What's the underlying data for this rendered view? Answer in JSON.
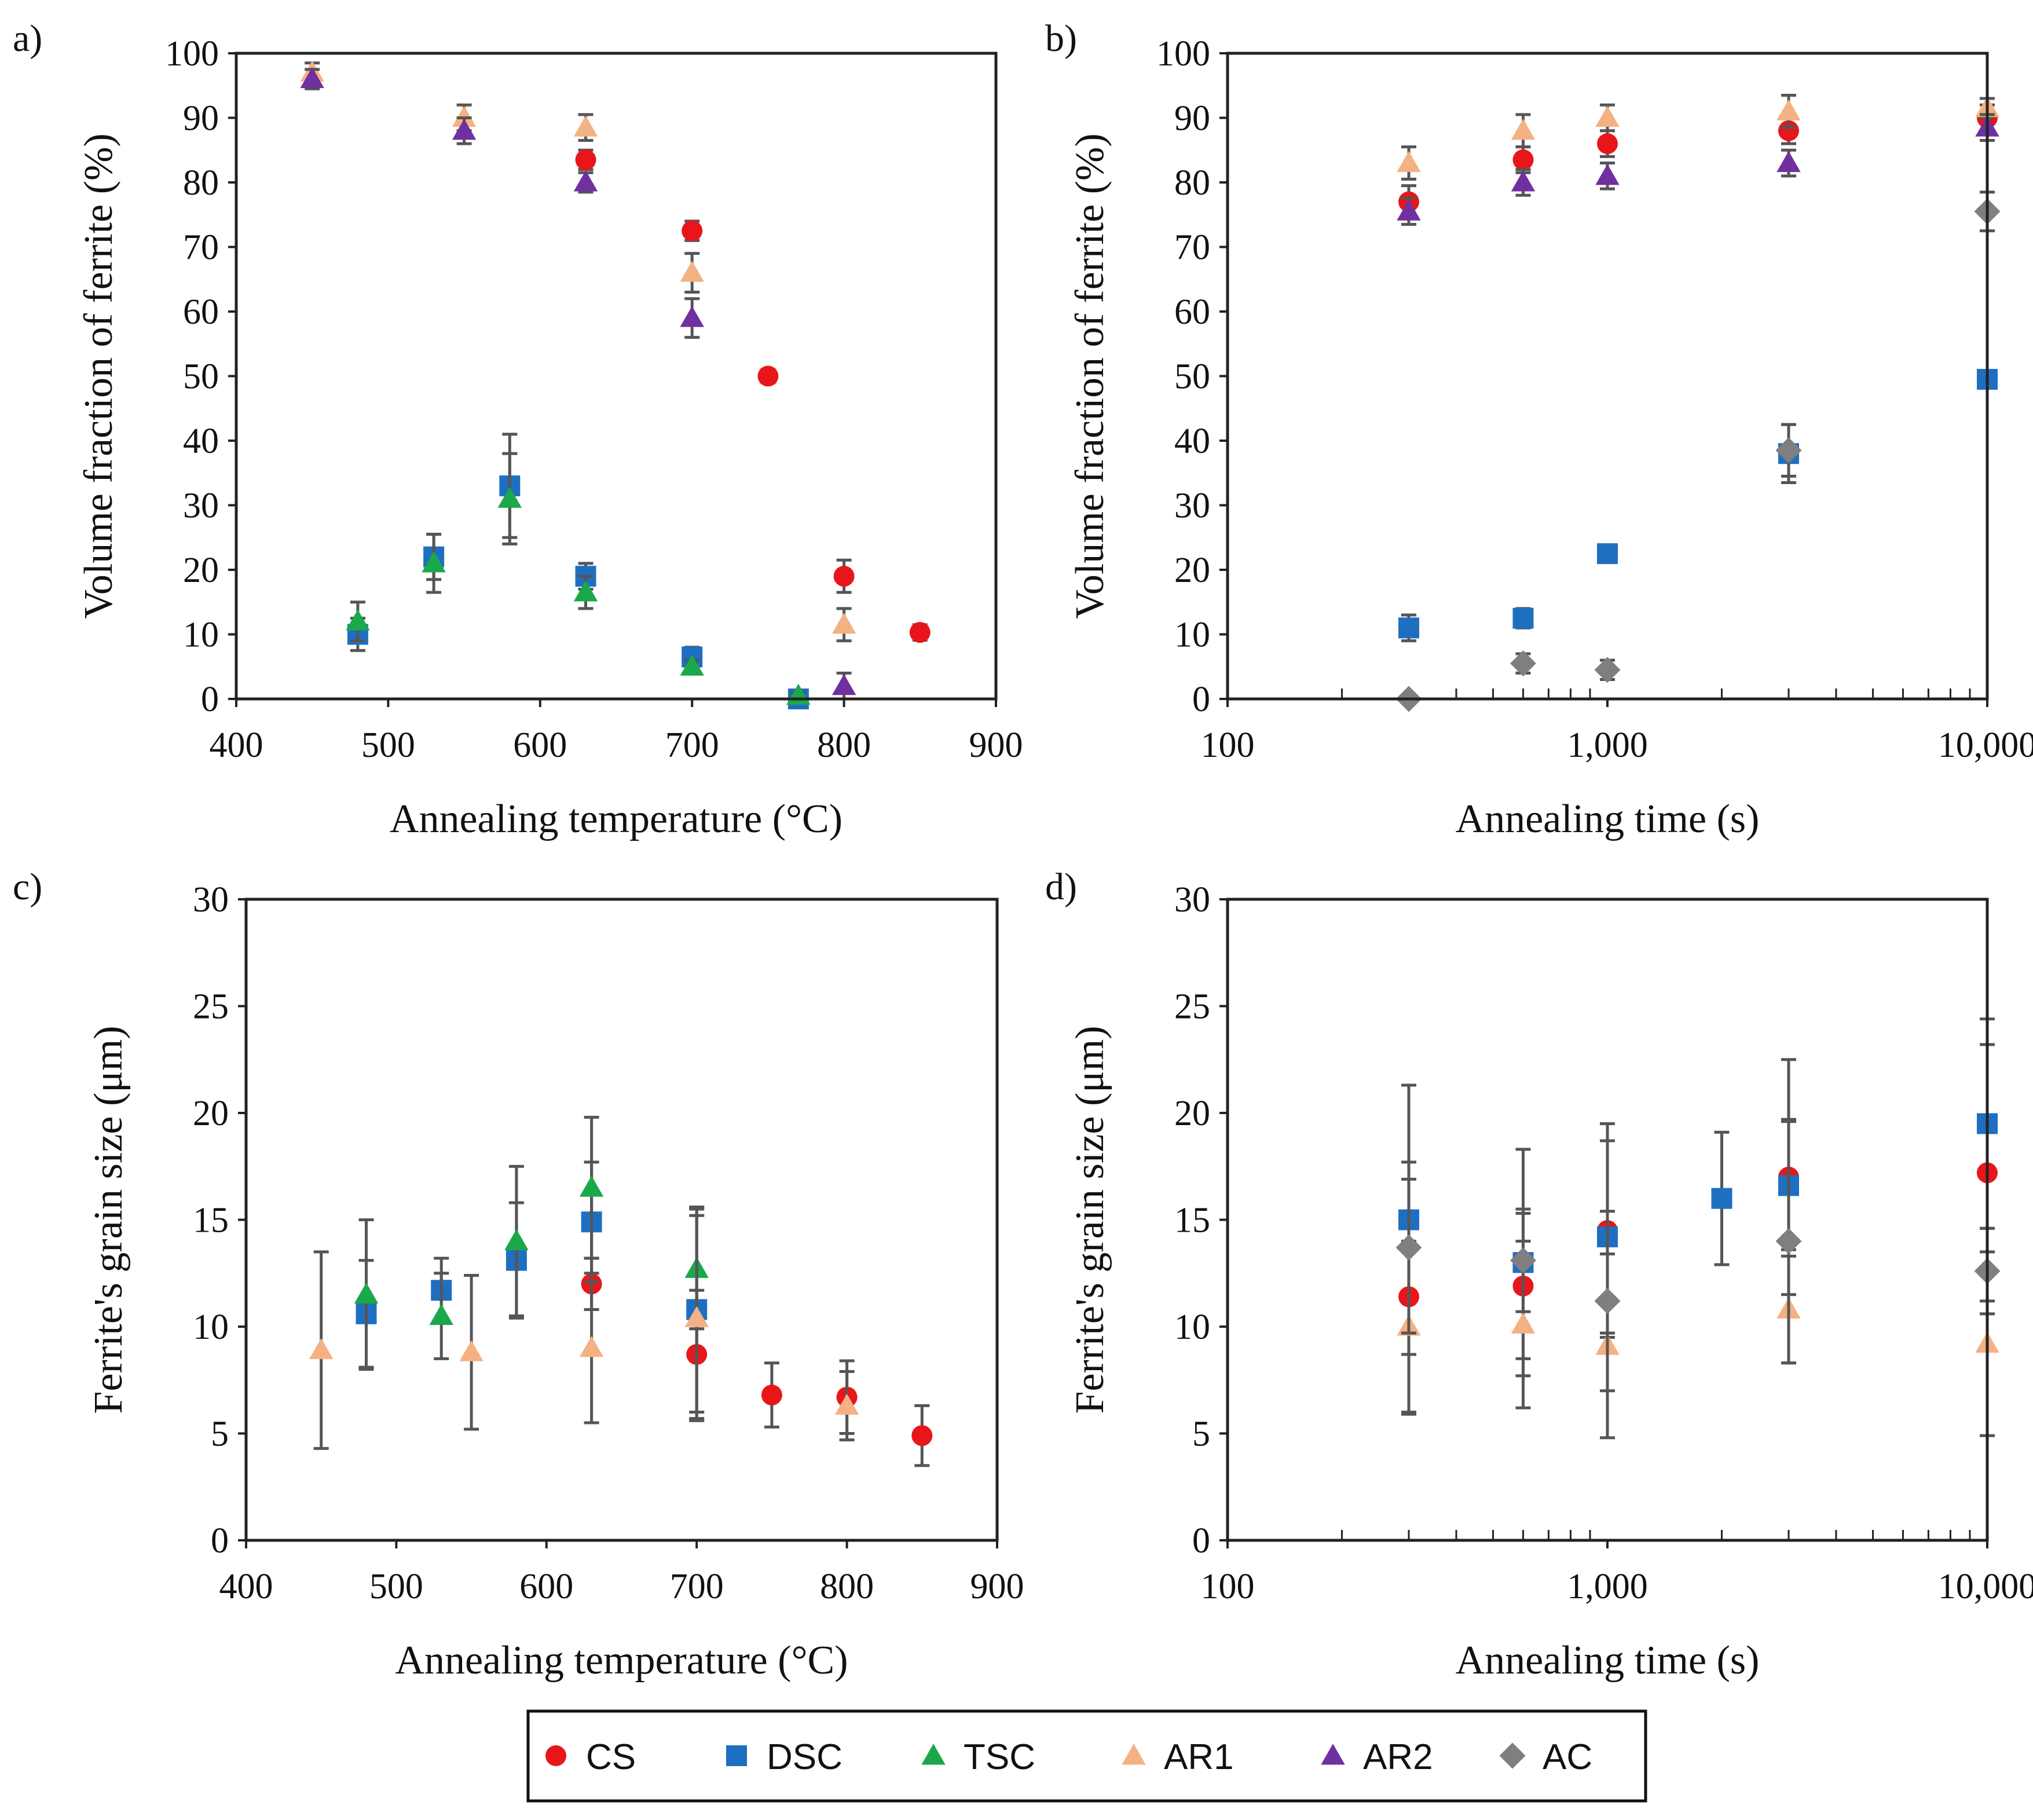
{
  "series_styles": {
    "CS": {
      "color": "#e8161b",
      "shape": "circle"
    },
    "DSC": {
      "color": "#1f6fc1",
      "shape": "square"
    },
    "TSC": {
      "color": "#1aa84a",
      "shape": "triangle"
    },
    "AR1": {
      "color": "#f4b183",
      "shape": "triangle"
    },
    "AR2": {
      "color": "#7030a0",
      "shape": "triangle"
    },
    "AC": {
      "color": "#7f7f7f",
      "shape": "diamond"
    }
  },
  "errorbar_color": "#555555",
  "legend": {
    "entries": [
      {
        "name": "CS"
      },
      {
        "name": "DSC"
      },
      {
        "name": "TSC"
      },
      {
        "name": "AR1"
      },
      {
        "name": "AR2"
      },
      {
        "name": "AC"
      }
    ]
  },
  "chart_data": [
    {
      "id": "a",
      "panel_label": "a)",
      "type": "scatter",
      "xscale": "linear",
      "xlabel": "Annealing temperature (°C)",
      "ylabel": "Volume fraction of ferrite (%)",
      "xlim": [
        400,
        900
      ],
      "ylim": [
        0,
        100
      ],
      "xticks": [
        400,
        500,
        600,
        700,
        800,
        900
      ],
      "xtick_labels": [
        "400",
        "500",
        "600",
        "700",
        "800",
        "900"
      ],
      "yticks": [
        0,
        10,
        20,
        30,
        40,
        50,
        60,
        70,
        80,
        90,
        100
      ],
      "ytick_labels": [
        "0",
        "10",
        "20",
        "30",
        "40",
        "50",
        "60",
        "70",
        "80",
        "90",
        "100"
      ],
      "series": [
        {
          "name": "CS",
          "points": [
            [
              630,
              83.5,
              1.5
            ],
            [
              700,
              72.5,
              1.5
            ],
            [
              750,
              50,
              1
            ],
            [
              800,
              19,
              2.5
            ],
            [
              850,
              10.3,
              1.2
            ]
          ]
        },
        {
          "name": "DSC",
          "points": [
            [
              480,
              10,
              2.5
            ],
            [
              530,
              22,
              3.5
            ],
            [
              580,
              33,
              8
            ],
            [
              630,
              19,
              2
            ],
            [
              700,
              6.5,
              1.5
            ],
            [
              770,
              0,
              0.5
            ]
          ]
        },
        {
          "name": "TSC",
          "points": [
            [
              480,
              12,
              3
            ],
            [
              530,
              21,
              4.5
            ],
            [
              580,
              31,
              7
            ],
            [
              630,
              16.5,
              2.5
            ],
            [
              700,
              5,
              1
            ],
            [
              770,
              0.5,
              0.5
            ]
          ]
        },
        {
          "name": "AR1",
          "points": [
            [
              450,
              97,
              1.5
            ],
            [
              550,
              90,
              2
            ],
            [
              630,
              88.5,
              2
            ],
            [
              700,
              66,
              3
            ],
            [
              800,
              11.5,
              2.5
            ]
          ]
        },
        {
          "name": "AR2",
          "points": [
            [
              450,
              96,
              1.5
            ],
            [
              550,
              88,
              2
            ],
            [
              630,
              80,
              1.5
            ],
            [
              700,
              59,
              3
            ],
            [
              800,
              2,
              2
            ]
          ]
        }
      ]
    },
    {
      "id": "b",
      "panel_label": "b)",
      "type": "scatter",
      "xscale": "log",
      "xlabel": "Annealing time (s)",
      "ylabel": "Volume fraction of ferrite (%)",
      "xlim": [
        100,
        10000
      ],
      "ylim": [
        0,
        100
      ],
      "xticks": [
        100,
        1000,
        10000
      ],
      "xtick_labels": [
        "100",
        "1,000",
        "10,000"
      ],
      "yticks": [
        0,
        10,
        20,
        30,
        40,
        50,
        60,
        70,
        80,
        90,
        100
      ],
      "ytick_labels": [
        "0",
        "10",
        "20",
        "30",
        "40",
        "50",
        "60",
        "70",
        "80",
        "90",
        "100"
      ],
      "series": [
        {
          "name": "CS",
          "points": [
            [
              300,
              77,
              2.5
            ],
            [
              600,
              83.5,
              2
            ],
            [
              1000,
              86,
              2
            ],
            [
              3000,
              88,
              2
            ],
            [
              10000,
              90,
              2
            ]
          ]
        },
        {
          "name": "DSC",
          "points": [
            [
              300,
              11,
              2
            ],
            [
              600,
              12.5,
              1.5
            ],
            [
              1000,
              22.5,
              1
            ],
            [
              3000,
              38,
              4.5
            ],
            [
              10000,
              49.5,
              1
            ]
          ]
        },
        {
          "name": "AR1",
          "points": [
            [
              300,
              83,
              2.5
            ],
            [
              600,
              88,
              2.5
            ],
            [
              1000,
              90,
              2
            ],
            [
              3000,
              91,
              2.5
            ],
            [
              10000,
              91.5,
              1.5
            ]
          ]
        },
        {
          "name": "AR2",
          "points": [
            [
              300,
              75.5,
              2
            ],
            [
              600,
              80,
              2
            ],
            [
              1000,
              81,
              2
            ],
            [
              3000,
              83,
              2
            ],
            [
              10000,
              88.5,
              2
            ]
          ]
        },
        {
          "name": "AC",
          "points": [
            [
              300,
              0,
              0.5
            ],
            [
              600,
              5.5,
              1.5
            ],
            [
              1000,
              4.5,
              1.5
            ],
            [
              3000,
              38.5,
              4
            ],
            [
              10000,
              75.5,
              3
            ]
          ]
        }
      ]
    },
    {
      "id": "c",
      "panel_label": "c)",
      "type": "scatter",
      "xscale": "linear",
      "xlabel": "Annealing temperature (°C)",
      "ylabel": "Ferrite's grain size (μm)",
      "xlim": [
        400,
        900
      ],
      "ylim": [
        0,
        30
      ],
      "xticks": [
        400,
        500,
        600,
        700,
        800,
        900
      ],
      "xtick_labels": [
        "400",
        "500",
        "600",
        "700",
        "800",
        "900"
      ],
      "yticks": [
        0,
        5,
        10,
        15,
        20,
        25,
        30
      ],
      "ytick_labels": [
        "0",
        "5",
        "10",
        "15",
        "20",
        "25",
        "30"
      ],
      "series": [
        {
          "name": "CS",
          "points": [
            [
              630,
              12,
              1.2
            ],
            [
              700,
              8.7,
              3
            ],
            [
              750,
              6.8,
              1.5
            ],
            [
              800,
              6.7,
              1.7
            ],
            [
              850,
              4.9,
              1.4
            ]
          ]
        },
        {
          "name": "DSC",
          "points": [
            [
              480,
              10.6,
              2.5
            ],
            [
              530,
              11.7,
              1.5
            ],
            [
              580,
              13.1,
              2.7
            ],
            [
              630,
              14.9,
              2.8
            ],
            [
              700,
              10.8,
              4.8
            ]
          ]
        },
        {
          "name": "TSC",
          "points": [
            [
              480,
              11.5,
              3.5
            ],
            [
              530,
              10.5,
              2
            ],
            [
              580,
              14,
              3.5
            ],
            [
              630,
              16.5,
              3.3
            ],
            [
              700,
              12.7,
              2.8
            ]
          ]
        },
        {
          "name": "AR1",
          "points": [
            [
              450,
              8.9,
              4.6
            ],
            [
              550,
              8.8,
              3.6
            ],
            [
              630,
              9,
              3.5
            ],
            [
              700,
              10.4,
              4.8
            ],
            [
              800,
              6.3,
              1.6
            ]
          ]
        }
      ]
    },
    {
      "id": "d",
      "panel_label": "d)",
      "type": "scatter",
      "xscale": "log",
      "xlabel": "Annealing time (s)",
      "ylabel": "Ferrite's grain size (μm)",
      "xlim": [
        100,
        10000
      ],
      "ylim": [
        0,
        30
      ],
      "xticks": [
        100,
        1000,
        10000
      ],
      "xtick_labels": [
        "100",
        "1,000",
        "10,000"
      ],
      "yticks": [
        0,
        5,
        10,
        15,
        20,
        25,
        30
      ],
      "ytick_labels": [
        "0",
        "5",
        "10",
        "15",
        "20",
        "25",
        "30"
      ],
      "series": [
        {
          "name": "CS",
          "points": [
            [
              300,
              11.4,
              5.5
            ],
            [
              600,
              11.9,
              3.4
            ],
            [
              1000,
              14.5,
              5
            ],
            [
              3000,
              17,
              5.5
            ],
            [
              10000,
              17.2,
              6
            ]
          ]
        },
        {
          "name": "DSC",
          "points": [
            [
              300,
              15,
              6.3
            ],
            [
              600,
              13,
              5.3
            ],
            [
              1000,
              14.2,
              4.5
            ],
            [
              2000,
              16,
              3.1
            ],
            [
              3000,
              16.6,
              3
            ],
            [
              10000,
              19.5,
              4.9
            ]
          ]
        },
        {
          "name": "AR1",
          "points": [
            [
              300,
              10,
              4
            ],
            [
              600,
              10.1,
              3.9
            ],
            [
              1000,
              9.1,
              4.3
            ],
            [
              3000,
              10.8,
              2.5
            ],
            [
              10000,
              9.2,
              4.3
            ]
          ]
        },
        {
          "name": "AC",
          "points": [
            [
              300,
              13.7,
              4
            ],
            [
              600,
              13.1,
              2.4
            ],
            [
              1000,
              11.2,
              4.2
            ],
            [
              3000,
              14,
              5.7
            ],
            [
              10000,
              12.6,
              2
            ]
          ]
        }
      ]
    }
  ]
}
